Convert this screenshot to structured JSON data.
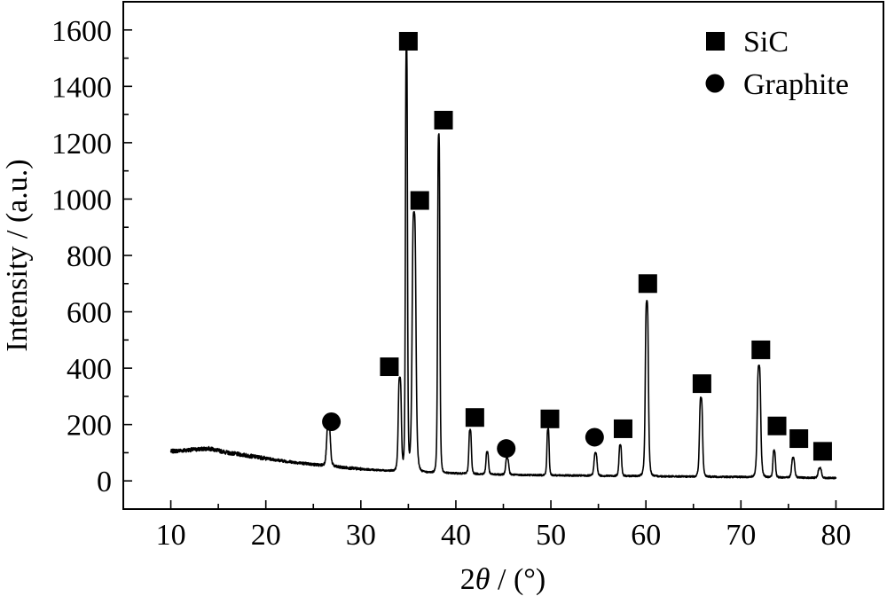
{
  "chart_data": {
    "type": "line",
    "xlabel_prefix": "2",
    "xlabel_theta": "θ",
    "xlabel_suffix": " / (°)",
    "ylabel": "Intensity / (a.u.)",
    "xlim": [
      5,
      85
    ],
    "ylim": [
      -100,
      1700
    ],
    "x_ticks": [
      10,
      20,
      30,
      40,
      50,
      60,
      70,
      80
    ],
    "y_ticks": [
      0,
      200,
      400,
      600,
      800,
      1000,
      1200,
      1400,
      1600
    ],
    "x_minor_step": 5,
    "y_minor_step": 100,
    "grid": false,
    "legend_position": "top-right",
    "legend": [
      {
        "marker": "square",
        "label": "SiC"
      },
      {
        "marker": "circle",
        "label": "Graphite"
      }
    ],
    "series": [
      {
        "baseline": [
          [
            10,
            105
          ],
          [
            12,
            110
          ],
          [
            14,
            115
          ],
          [
            16,
            100
          ],
          [
            18,
            90
          ],
          [
            20,
            80
          ],
          [
            22,
            70
          ],
          [
            24,
            62
          ],
          [
            26,
            55
          ],
          [
            28,
            48
          ],
          [
            30,
            42
          ],
          [
            32,
            38
          ],
          [
            34,
            35
          ],
          [
            36,
            32
          ],
          [
            40,
            27
          ],
          [
            45,
            22
          ],
          [
            50,
            20
          ],
          [
            55,
            18
          ],
          [
            60,
            17
          ],
          [
            65,
            15
          ],
          [
            70,
            14
          ],
          [
            75,
            12
          ],
          [
            80,
            10
          ]
        ],
        "peaks": [
          {
            "x": 26.6,
            "y": 150,
            "w": 0.22
          },
          {
            "x": 34.1,
            "y": 330,
            "w": 0.18
          },
          {
            "x": 34.8,
            "y": 1500,
            "w": 0.12
          },
          {
            "x": 35.6,
            "y": 920,
            "w": 0.22
          },
          {
            "x": 38.2,
            "y": 1200,
            "w": 0.13
          },
          {
            "x": 41.5,
            "y": 155,
            "w": 0.15
          },
          {
            "x": 43.3,
            "y": 80,
            "w": 0.15
          },
          {
            "x": 45.4,
            "y": 60,
            "w": 0.18
          },
          {
            "x": 49.7,
            "y": 165,
            "w": 0.13
          },
          {
            "x": 54.7,
            "y": 80,
            "w": 0.18
          },
          {
            "x": 57.3,
            "y": 110,
            "w": 0.15
          },
          {
            "x": 60.1,
            "y": 620,
            "w": 0.18
          },
          {
            "x": 65.8,
            "y": 280,
            "w": 0.18
          },
          {
            "x": 71.9,
            "y": 395,
            "w": 0.2
          },
          {
            "x": 73.5,
            "y": 95,
            "w": 0.15
          },
          {
            "x": 75.5,
            "y": 70,
            "w": 0.18
          },
          {
            "x": 78.3,
            "y": 35,
            "w": 0.2
          }
        ]
      }
    ],
    "markers": [
      {
        "type": "circle",
        "x": 26.9,
        "y": 210
      },
      {
        "type": "square",
        "x": 33.0,
        "y": 405
      },
      {
        "type": "square",
        "x": 35.0,
        "y": 1560
      },
      {
        "type": "square",
        "x": 36.2,
        "y": 995
      },
      {
        "type": "square",
        "x": 38.7,
        "y": 1280
      },
      {
        "type": "square",
        "x": 42.0,
        "y": 225
      },
      {
        "type": "circle",
        "x": 45.3,
        "y": 115
      },
      {
        "type": "square",
        "x": 49.9,
        "y": 220
      },
      {
        "type": "circle",
        "x": 54.6,
        "y": 155
      },
      {
        "type": "square",
        "x": 57.6,
        "y": 185
      },
      {
        "type": "square",
        "x": 60.2,
        "y": 700
      },
      {
        "type": "square",
        "x": 65.9,
        "y": 345
      },
      {
        "type": "square",
        "x": 72.1,
        "y": 465
      },
      {
        "type": "square",
        "x": 73.8,
        "y": 195
      },
      {
        "type": "square",
        "x": 76.1,
        "y": 150
      },
      {
        "type": "square",
        "x": 78.6,
        "y": 105
      }
    ]
  }
}
